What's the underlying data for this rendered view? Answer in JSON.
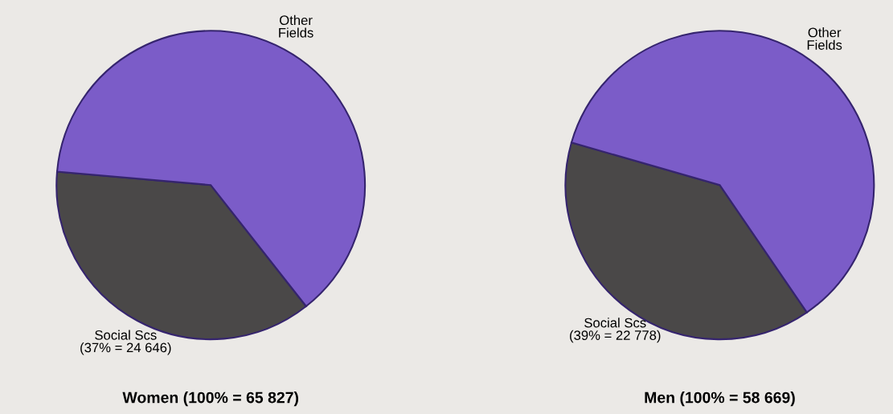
{
  "chart_data": [
    {
      "type": "pie",
      "title": "Women (100% = 65 827)",
      "categories": [
        "Social Scs\n(37% = 24 646)",
        "Other\nFields"
      ],
      "values": [
        37,
        63
      ],
      "colors": [
        "#4a4848",
        "#7b5cc8"
      ]
    },
    {
      "type": "pie",
      "title": "Men (100% = 58 669)",
      "categories": [
        "Social Scs\n(39% = 22 778)",
        "Other\nFields"
      ],
      "values": [
        39,
        61
      ],
      "colors": [
        "#4a4848",
        "#7b5cc8"
      ]
    }
  ]
}
